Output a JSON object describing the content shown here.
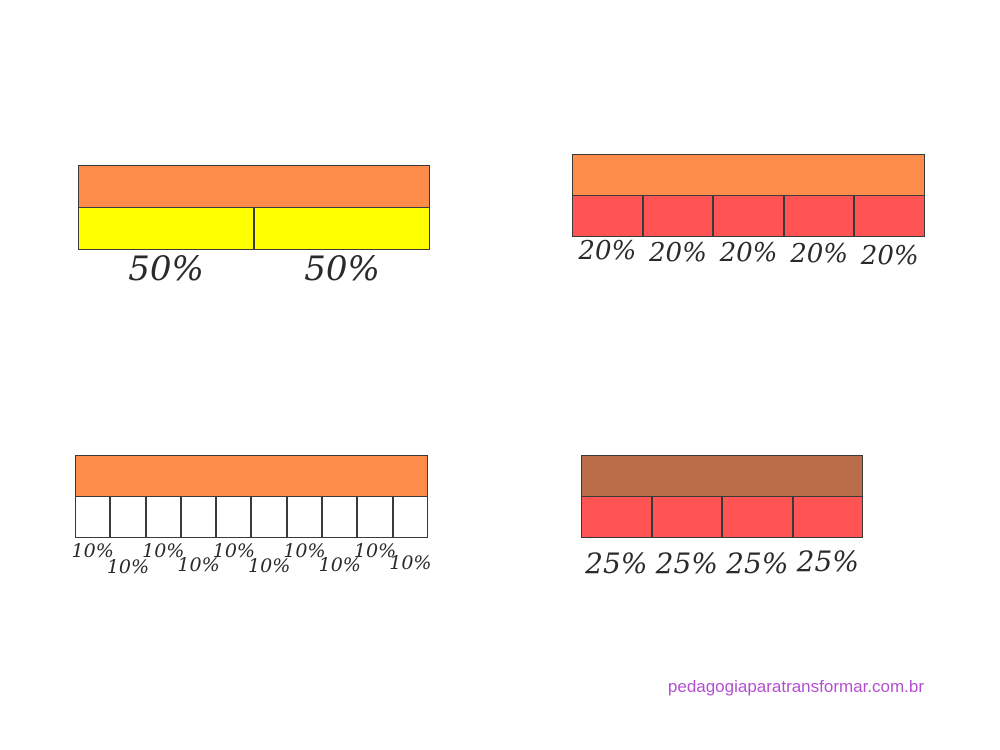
{
  "colors": {
    "whole_orange": "#fe8c4b",
    "whole_brown": "#bb6c48",
    "yellow": "#ffff00",
    "red": "#fe5454",
    "white": "#ffffff",
    "footer": "#b34fd1"
  },
  "bars": [
    {
      "id": "halves",
      "whole_color": "whole_orange",
      "part_color": "yellow",
      "labels": [
        "50%",
        "50%"
      ]
    },
    {
      "id": "fifths",
      "whole_color": "whole_orange",
      "part_color": "red",
      "labels": [
        "20%",
        "20%",
        "20%",
        "20%",
        "20%"
      ]
    },
    {
      "id": "tenths",
      "whole_color": "whole_orange",
      "part_color": "white",
      "labels": [
        "10%",
        "10%",
        "10%",
        "10%",
        "10%",
        "10%",
        "10%",
        "10%",
        "10%",
        "10%"
      ]
    },
    {
      "id": "quarters",
      "whole_color": "whole_brown",
      "part_color": "red",
      "labels": [
        "25%",
        "25%",
        "25%",
        "25%"
      ]
    }
  ],
  "footer": {
    "text": "pedagogiaparatransformar.com.br"
  }
}
